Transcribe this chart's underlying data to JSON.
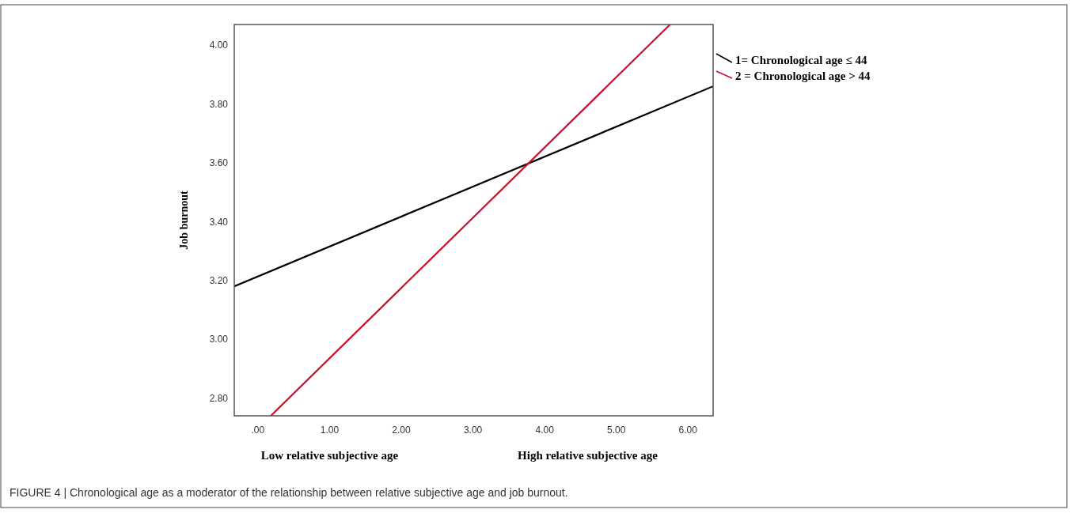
{
  "chart_data": {
    "type": "line",
    "ylabel": "Job burnout",
    "annotations": [
      "Low relative subjective age",
      "High relative subjective age",
      "FIGURE 4 | Chronological age as a moderator of the relationship between relative subjective age and job burnout."
    ],
    "xlim": [
      -0.33,
      6.35
    ],
    "ylim": [
      2.74,
      4.07
    ],
    "xticks": [
      {
        "value": 0,
        "label": ".00"
      },
      {
        "value": 1,
        "label": "1.00"
      },
      {
        "value": 2,
        "label": "2.00"
      },
      {
        "value": 3,
        "label": "3.00"
      },
      {
        "value": 4,
        "label": "4.00"
      },
      {
        "value": 5,
        "label": "5.00"
      },
      {
        "value": 6,
        "label": "6.00"
      }
    ],
    "yticks": [
      {
        "value": 2.8,
        "label": "2.80"
      },
      {
        "value": 3.0,
        "label": "3.00"
      },
      {
        "value": 3.2,
        "label": "3.20"
      },
      {
        "value": 3.4,
        "label": "3.40"
      },
      {
        "value": 3.6,
        "label": "3.60"
      },
      {
        "value": 3.8,
        "label": "3.80"
      },
      {
        "value": 4.0,
        "label": "4.00"
      }
    ],
    "legend": "top right",
    "grid": false,
    "marker": "none",
    "line_style": "solid",
    "series": [
      {
        "name": "1= Chronological age ≤ 44",
        "color": "#000000",
        "x": [
          -0.33,
          6.35
        ],
        "values": [
          3.18,
          3.86
        ]
      },
      {
        "name": "2 = Chronological age > 44",
        "color": "#c8102e",
        "x": [
          0.18,
          5.75
        ],
        "values": [
          2.74,
          4.07
        ]
      }
    ]
  }
}
